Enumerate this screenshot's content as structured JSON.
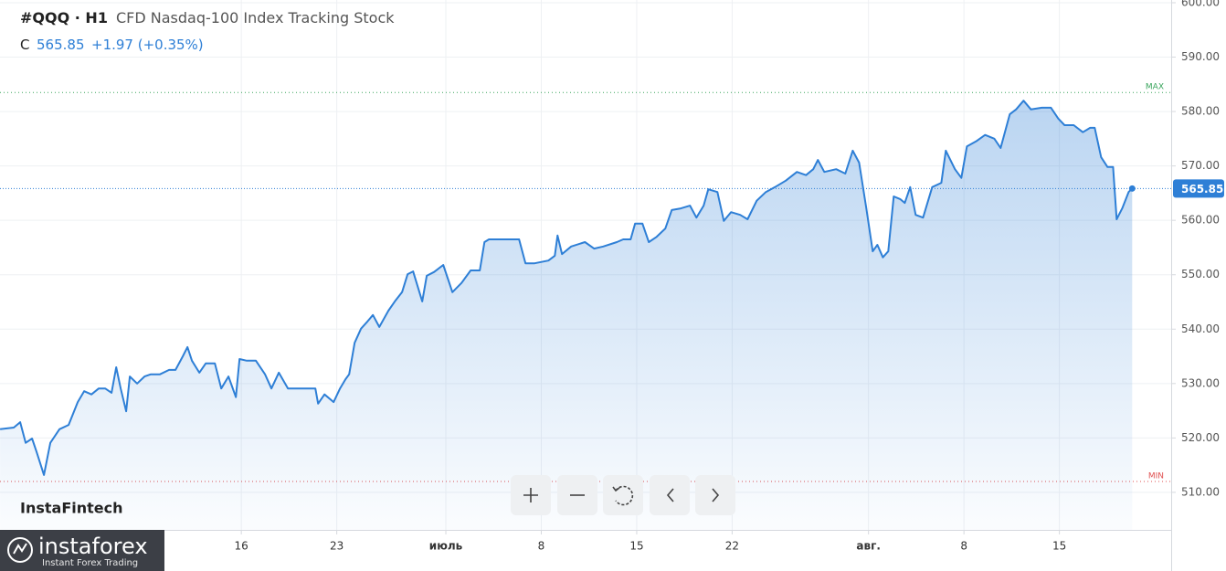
{
  "chart_data": {
    "type": "line",
    "symbol": "#QQQ · H1",
    "title": "CFD Nasdaq-100 Index Tracking Stock",
    "close": {
      "label": "C",
      "value": 565.85,
      "change": "+1.97 (+0.35%)"
    },
    "brand": "InstaFintech",
    "logo": {
      "name": "instaforex",
      "tagline": "Instant Forex Trading"
    },
    "color": "#2e7fd6",
    "grid": true,
    "max_line": {
      "label": "MAX",
      "value": 583.5,
      "color": "#3aa55d"
    },
    "min_line": {
      "label": "MIN",
      "value": 512,
      "color": "#e05050"
    },
    "xlim": [
      -1.7,
      84.2
    ],
    "xticks": [
      16,
      23,
      {
        "value": 31,
        "label": "июль"
      },
      {
        "value": 38,
        "label": "8"
      },
      {
        "value": 45,
        "label": "15"
      },
      {
        "value": 52,
        "label": "22"
      },
      {
        "value": 62,
        "label": "авг."
      },
      {
        "value": 69,
        "label": "8"
      },
      {
        "value": 76,
        "label": "15"
      }
    ],
    "ylim": [
      503.1,
      600.5
    ],
    "yticks": [
      {
        "value": 510,
        "label": "510.00"
      },
      {
        "value": 520,
        "label": "520.00"
      },
      {
        "value": 530,
        "label": "530.00"
      },
      {
        "value": 540,
        "label": "540.00"
      },
      {
        "value": 550,
        "label": "550.00"
      },
      {
        "value": 560,
        "label": "560.00"
      },
      {
        "value": 570,
        "label": "570.00"
      },
      {
        "value": 580,
        "label": "580.00"
      },
      {
        "value": 590,
        "label": "590.00"
      },
      {
        "value": 600,
        "label": "600.00"
      }
    ],
    "x": [
      -1.69,
      -0.69,
      -0.22,
      0.18,
      0.65,
      0.99,
      1.52,
      1.99,
      2.66,
      3.33,
      4.0,
      4.47,
      5.01,
      5.54,
      6.01,
      6.48,
      6.82,
      7.15,
      7.55,
      7.82,
      8.36,
      8.9,
      9.36,
      10.03,
      10.7,
      11.17,
      11.71,
      12.05,
      12.38,
      12.92,
      13.39,
      14.06,
      14.53,
      15.06,
      15.6,
      15.87,
      16.4,
      17.07,
      17.74,
      18.21,
      18.75,
      19.42,
      20.42,
      21.43,
      21.63,
      22.1,
      22.77,
      23.24,
      23.64,
      23.91,
      24.31,
      24.78,
      25.25,
      25.65,
      26.12,
      26.79,
      27.26,
      27.79,
      28.2,
      28.6,
      29.27,
      29.6,
      30.14,
      30.81,
      31.48,
      32.15,
      32.82,
      33.49,
      33.83,
      34.16,
      36.37,
      36.84,
      37.51,
      38.52,
      38.99,
      39.19,
      39.52,
      40.19,
      41.2,
      41.87,
      42.54,
      43.54,
      44.01,
      44.55,
      44.88,
      45.42,
      45.89,
      46.43,
      47.1,
      47.57,
      48.24,
      48.91,
      49.38,
      49.91,
      50.25,
      50.92,
      51.39,
      51.92,
      52.59,
      53.13,
      53.8,
      54.47,
      55.14,
      55.94,
      56.75,
      57.42,
      57.95,
      58.29,
      58.76,
      59.63,
      60.3,
      60.84,
      61.31,
      61.84,
      62.31,
      62.65,
      63.05,
      63.45,
      63.85,
      64.32,
      64.66,
      65.06,
      65.46,
      66.0,
      66.67,
      67.34,
      67.67,
      68.34,
      68.81,
      69.22,
      69.88,
      70.55,
      71.23,
      71.69,
      72.36,
      72.83,
      73.37,
      73.91,
      74.71,
      75.38,
      75.92,
      76.38,
      77.05,
      77.72,
      78.26,
      78.59,
      79.06,
      79.53,
      79.94,
      80.2,
      80.61,
      81.08,
      81.34
    ],
    "values": [
      521.6,
      521.9,
      522.9,
      519.1,
      519.9,
      517.4,
      513.2,
      519.1,
      521.6,
      522.4,
      526.6,
      528.6,
      528.0,
      529.1,
      529.1,
      528.3,
      533.0,
      529.1,
      524.9,
      531.3,
      530.0,
      531.3,
      531.7,
      531.7,
      532.5,
      532.5,
      535.0,
      536.7,
      534.2,
      532.0,
      533.7,
      533.7,
      529.1,
      531.3,
      527.5,
      534.5,
      534.2,
      534.2,
      531.7,
      529.1,
      532.0,
      529.1,
      529.1,
      529.1,
      526.3,
      528.0,
      526.6,
      529.1,
      530.8,
      531.7,
      537.5,
      540.1,
      541.4,
      542.6,
      540.4,
      543.4,
      545.1,
      546.8,
      550.1,
      550.6,
      545.1,
      549.8,
      550.5,
      551.8,
      546.8,
      548.5,
      550.8,
      550.8,
      556.0,
      556.5,
      556.5,
      552.1,
      552.1,
      552.6,
      553.5,
      557.2,
      553.8,
      555.2,
      556.0,
      554.8,
      555.2,
      556.0,
      556.5,
      556.5,
      559.4,
      559.4,
      556.0,
      556.9,
      558.5,
      561.9,
      562.2,
      562.7,
      560.5,
      562.7,
      565.7,
      565.2,
      559.9,
      561.5,
      561.0,
      560.2,
      563.6,
      565.2,
      566.1,
      567.3,
      568.9,
      568.3,
      569.4,
      571.1,
      568.9,
      569.4,
      568.6,
      572.8,
      570.6,
      562.2,
      554.3,
      555.5,
      553.2,
      554.3,
      564.4,
      563.9,
      563.2,
      566.1,
      561.0,
      560.5,
      566.1,
      566.9,
      572.8,
      569.4,
      567.8,
      573.6,
      574.5,
      575.7,
      575.0,
      573.3,
      579.5,
      580.4,
      582.0,
      580.4,
      580.7,
      580.7,
      578.7,
      577.5,
      577.5,
      576.2,
      577.0,
      577.0,
      571.6,
      569.8,
      569.8,
      560.2,
      562.2,
      565.2,
      565.85
    ]
  }
}
